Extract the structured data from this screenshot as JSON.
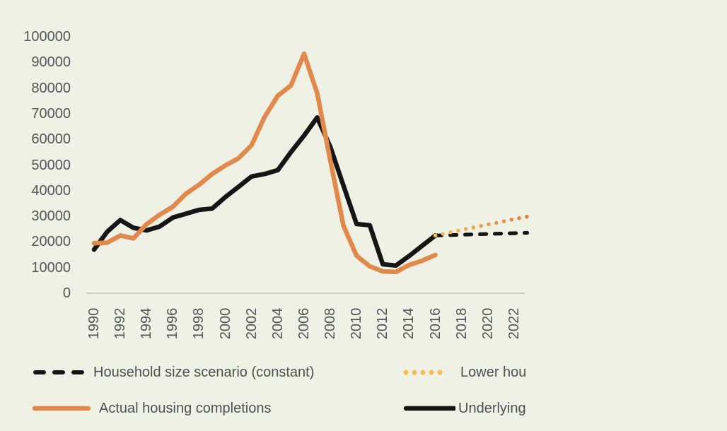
{
  "chart_data": {
    "type": "line",
    "title": "",
    "xlabel": "",
    "ylabel": "",
    "grid": false,
    "legend_position": "bottom",
    "ylim": [
      0,
      100000
    ],
    "xlim": [
      1990,
      2023
    ],
    "yticks": [
      100000,
      90000,
      80000,
      70000,
      60000,
      50000,
      40000,
      30000,
      20000,
      10000,
      0
    ],
    "xticks": [
      1990,
      1992,
      1994,
      1996,
      1998,
      2000,
      2002,
      2004,
      2006,
      2008,
      2010,
      2012,
      2014,
      2016,
      2018,
      2020,
      2022
    ],
    "series": [
      {
        "id": "underlying",
        "name": "Underlying",
        "style": "solid",
        "color": "#151515",
        "x": [
          1990,
          1991,
          1992,
          1993,
          1994,
          1995,
          1996,
          1997,
          1998,
          1999,
          2000,
          2001,
          2002,
          2003,
          2004,
          2005,
          2006,
          2007,
          2008,
          2009,
          2010,
          2011,
          2012,
          2013,
          2014,
          2015,
          2016
        ],
        "values": [
          17000,
          24000,
          28500,
          25500,
          24500,
          26000,
          29500,
          31000,
          32500,
          33000,
          37500,
          41500,
          45500,
          46500,
          48000,
          55000,
          61500,
          68500,
          57000,
          42000,
          27000,
          26500,
          11300,
          10800,
          14500,
          18500,
          22500
        ]
      },
      {
        "id": "actual",
        "name": "Actual housing completions",
        "style": "solid",
        "color": "#E1884B",
        "x": [
          1990,
          1991,
          1992,
          1993,
          1994,
          1995,
          1996,
          1997,
          1998,
          1999,
          2000,
          2001,
          2002,
          2003,
          2004,
          2005,
          2006,
          2007,
          2008,
          2009,
          2010,
          2011,
          2012,
          2013,
          2014,
          2015,
          2016
        ],
        "values": [
          19500,
          19700,
          22500,
          21400,
          26900,
          30600,
          33700,
          38800,
          42300,
          46500,
          49800,
          52600,
          57700,
          68800,
          77000,
          81000,
          93400,
          78000,
          51700,
          26400,
          14600,
          10500,
          8500,
          8300,
          11000,
          12700,
          14900
        ]
      },
      {
        "id": "constant",
        "name": "Household size scenario (constant)",
        "style": "dashed",
        "color": "#151515",
        "x": [
          2016,
          2017,
          2018,
          2019,
          2020,
          2021,
          2022,
          2023
        ],
        "values": [
          22500,
          22650,
          22800,
          22950,
          23100,
          23250,
          23400,
          23550
        ]
      },
      {
        "id": "lower",
        "name": "Lower hou",
        "style": "dotted",
        "color": "#F2BC57",
        "color_end": "#E07E3B",
        "x": [
          2016,
          2017,
          2018,
          2019,
          2020,
          2021,
          2022,
          2023
        ],
        "values": [
          22500,
          23600,
          24700,
          25700,
          26800,
          27800,
          28900,
          29900
        ]
      }
    ]
  },
  "legend": {
    "items": [
      {
        "label": "Household size scenario (constant)"
      },
      {
        "label": "Lower hou"
      },
      {
        "label": "Actual housing completions"
      },
      {
        "label": "Underlying"
      }
    ]
  },
  "colors": {
    "background": "#EFF1E5",
    "axis_line": "#CDD0C5",
    "tick_text": "#53555A",
    "legend_text": "#4D5054",
    "orange": "#E1884B",
    "black": "#151515",
    "amber": "#F2BC57"
  }
}
